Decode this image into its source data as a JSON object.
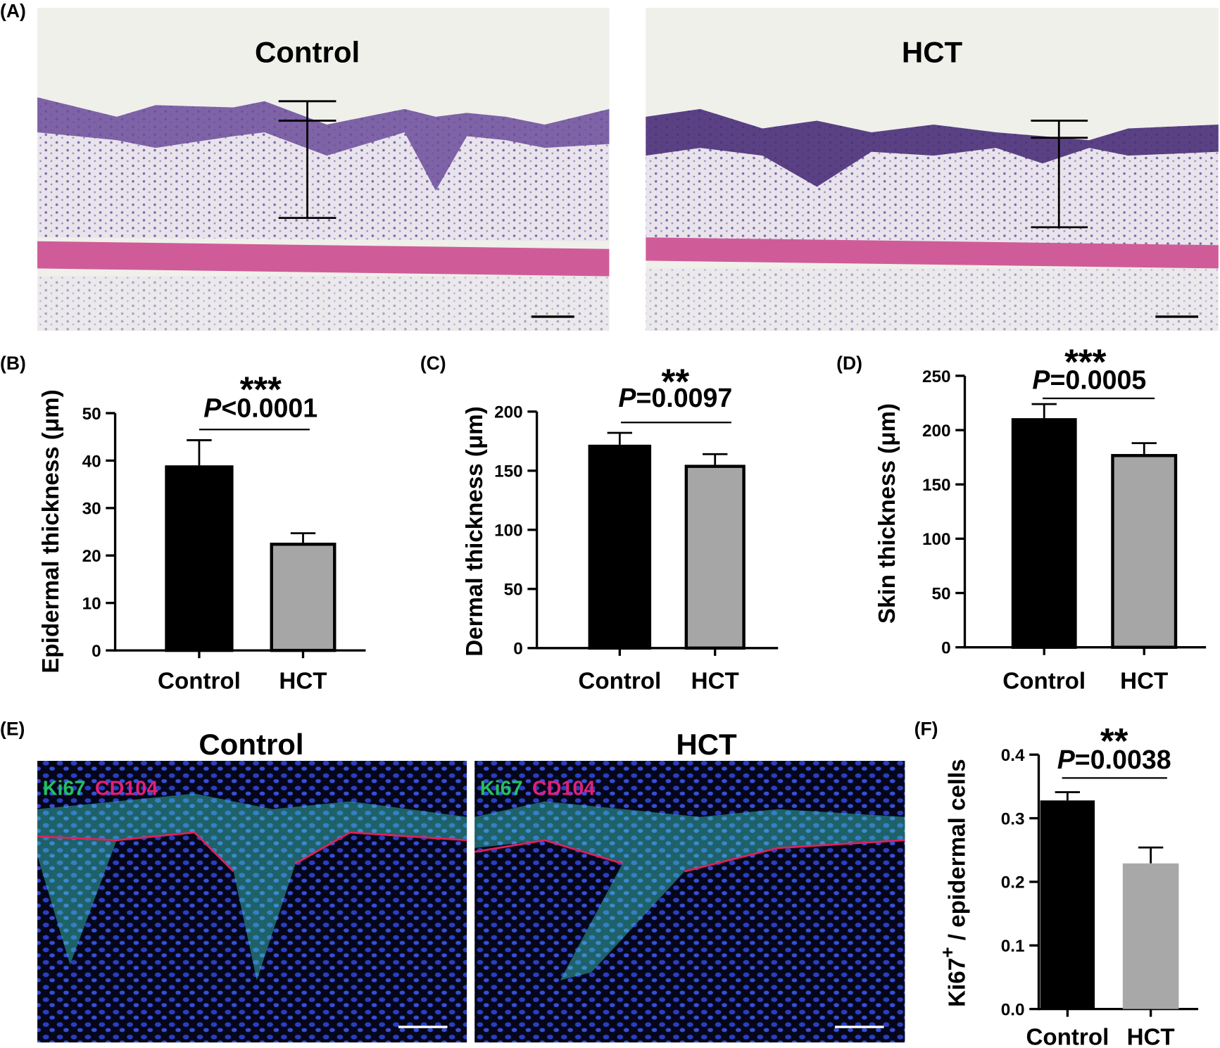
{
  "panel_a": {
    "label": "(A)",
    "titles": [
      "Control",
      "HCT"
    ]
  },
  "panel_e": {
    "label": "(E)",
    "titles": [
      "Control",
      "HCT"
    ],
    "stains": [
      "Ki67",
      "CD104"
    ]
  },
  "chart_data": [
    {
      "type": "bar",
      "panel": "(B)",
      "categories": [
        "Control",
        "HCT"
      ],
      "values": [
        39,
        22.7
      ],
      "errors": [
        5.3,
        2
      ],
      "colors": [
        "#000000",
        "#a6a6a6"
      ],
      "bar_border": true,
      "ylabel": "Epidermal thickness (μm)",
      "ylim": [
        0,
        50
      ],
      "yticks": [
        0,
        10,
        20,
        30,
        40,
        50
      ],
      "significance": "***",
      "p_prefix": "P",
      "p_text": "<0.0001"
    },
    {
      "type": "bar",
      "panel": "(C)",
      "categories": [
        "Control",
        "HCT"
      ],
      "values": [
        172,
        155
      ],
      "errors": [
        10,
        9
      ],
      "colors": [
        "#000000",
        "#a6a6a6"
      ],
      "bar_border": true,
      "ylabel": "Dermal thickness (μm)",
      "ylim": [
        0,
        200
      ],
      "yticks": [
        0,
        50,
        100,
        150,
        200
      ],
      "significance": "**",
      "p_prefix": "P",
      "p_text": "=0.0097"
    },
    {
      "type": "bar",
      "panel": "(D)",
      "categories": [
        "Control",
        "HCT"
      ],
      "values": [
        211,
        178
      ],
      "errors": [
        13,
        10
      ],
      "colors": [
        "#000000",
        "#a6a6a6"
      ],
      "bar_border": true,
      "ylabel": "Skin thickness (μm)",
      "ylim": [
        0,
        250
      ],
      "yticks": [
        0,
        50,
        100,
        150,
        200,
        250
      ],
      "significance": "***",
      "p_prefix": "P",
      "p_text": "=0.0005"
    },
    {
      "type": "bar",
      "panel": "(F)",
      "categories": [
        "Control",
        "HCT"
      ],
      "values": [
        0.328,
        0.229
      ],
      "errors": [
        0.013,
        0.025
      ],
      "colors": [
        "#000000",
        "#a8a8a8"
      ],
      "bar_border": false,
      "ylabel": "Ki67",
      "ylabel_sup": "+",
      "ylabel_rest": " / epidermal cells",
      "ylim": [
        0,
        0.4
      ],
      "yticks": [
        {
          "value": 0,
          "label": "0.0"
        },
        0.1,
        0.2,
        0.3,
        0.4
      ],
      "significance": "**",
      "p_prefix": "P",
      "p_text": "=0.0038"
    }
  ]
}
